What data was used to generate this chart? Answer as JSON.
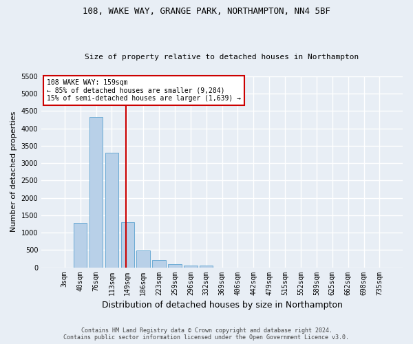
{
  "title_line1": "108, WAKE WAY, GRANGE PARK, NORTHAMPTON, NN4 5BF",
  "title_line2": "Size of property relative to detached houses in Northampton",
  "xlabel": "Distribution of detached houses by size in Northampton",
  "ylabel": "Number of detached properties",
  "footer_line1": "Contains HM Land Registry data © Crown copyright and database right 2024.",
  "footer_line2": "Contains public sector information licensed under the Open Government Licence v3.0.",
  "bar_labels": [
    "3sqm",
    "40sqm",
    "76sqm",
    "113sqm",
    "149sqm",
    "186sqm",
    "223sqm",
    "259sqm",
    "296sqm",
    "332sqm",
    "369sqm",
    "406sqm",
    "442sqm",
    "479sqm",
    "515sqm",
    "552sqm",
    "589sqm",
    "625sqm",
    "662sqm",
    "698sqm",
    "735sqm"
  ],
  "bar_values": [
    0,
    1270,
    4340,
    3300,
    1290,
    480,
    210,
    90,
    60,
    50,
    0,
    0,
    0,
    0,
    0,
    0,
    0,
    0,
    0,
    0,
    0
  ],
  "bar_color": "#b8d0e8",
  "bar_edge_color": "#6aaad4",
  "background_color": "#e8eef5",
  "grid_color": "#ffffff",
  "ylim_max": 5500,
  "yticks": [
    0,
    500,
    1000,
    1500,
    2000,
    2500,
    3000,
    3500,
    4000,
    4500,
    5000,
    5500
  ],
  "property_label": "108 WAKE WAY: 159sqm",
  "annotation_line1": "← 85% of detached houses are smaller (9,284)",
  "annotation_line2": "15% of semi-detached houses are larger (1,639) →",
  "vline_x": 3.9,
  "vline_color": "#cc0000",
  "annotation_box_facecolor": "#ffffff",
  "annotation_box_edgecolor": "#cc0000",
  "title_fontsize": 9,
  "subtitle_fontsize": 8,
  "xlabel_fontsize": 9,
  "ylabel_fontsize": 8,
  "tick_fontsize": 7,
  "annotation_fontsize": 7,
  "footer_fontsize": 6
}
